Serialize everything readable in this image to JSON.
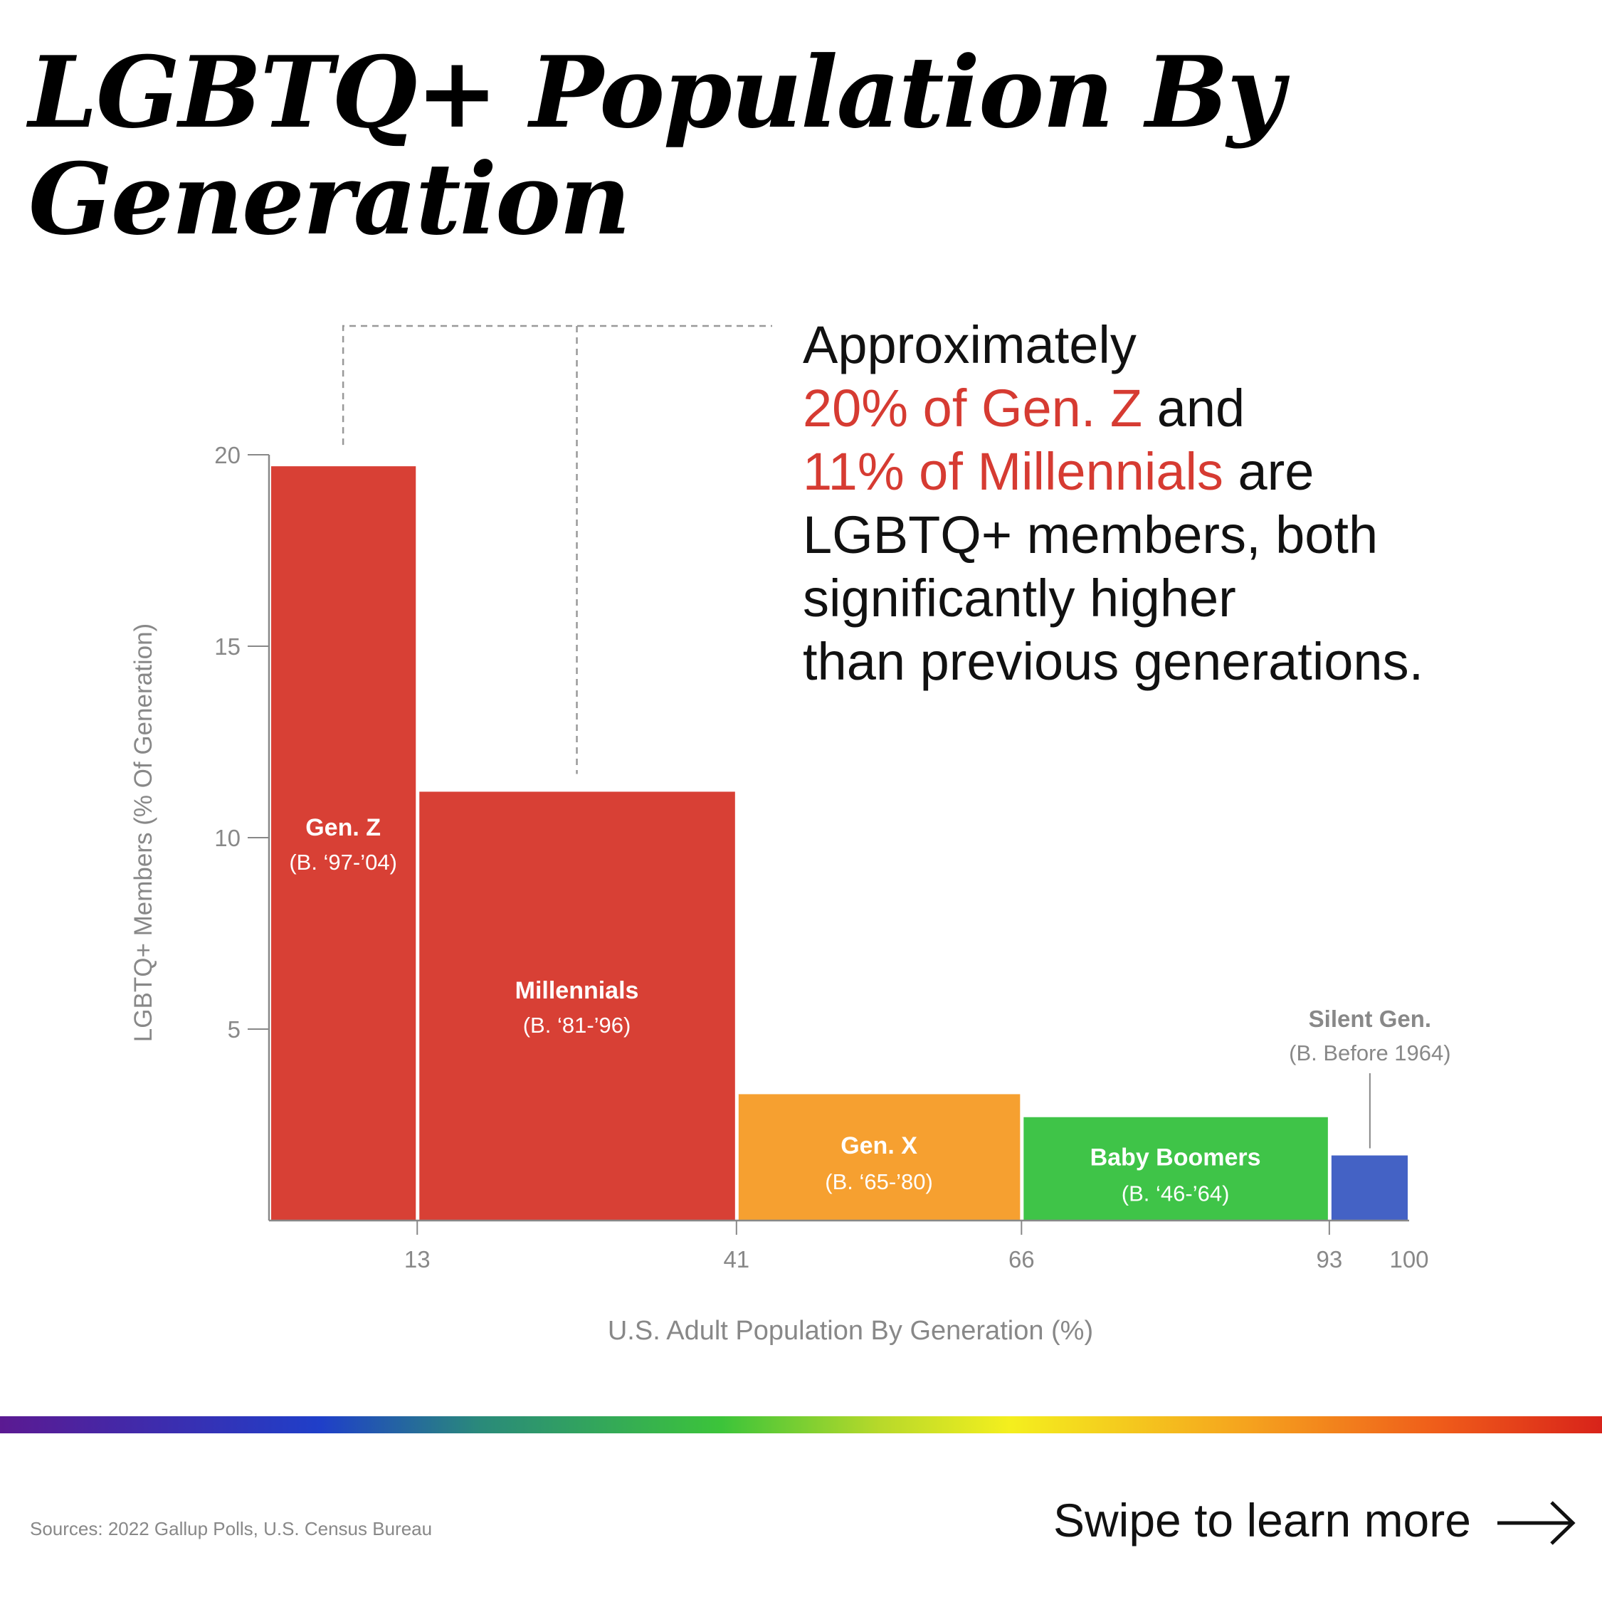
{
  "title_lines": [
    "LGBTQ+ Population By",
    "Generation"
  ],
  "callout": {
    "line1": "Approximately",
    "highlight1": "20% of Gen. Z",
    "after1": " and",
    "highlight2": "11% of Millennials",
    "after2": " are",
    "line4": "LGBTQ+ members, both",
    "line5": "significantly higher",
    "line6": "than previous generations."
  },
  "footer": {
    "sources": "Sources: 2022 Gallup Polls, U.S. Census Bureau",
    "swipe": "Swipe to learn more",
    "arrow_icon": "right-arrow-icon"
  },
  "colors": {
    "red": "#d84035",
    "orange": "#f6a030",
    "green": "#3fc448",
    "blue": "#4462c5",
    "highlight": "#d63b32",
    "axis": "#888888"
  },
  "chart_data": {
    "type": "bar",
    "variant": "variable-width (marimekko)",
    "xlabel": "U.S. Adult Population By Generation (%)",
    "ylabel": "LGBTQ+ Members (% Of Generation)",
    "xlim": [
      0,
      100
    ],
    "ylim": [
      0,
      20
    ],
    "x_ticks": [
      13,
      41,
      66,
      93,
      100
    ],
    "y_ticks": [
      5,
      10,
      15,
      20
    ],
    "series": [
      {
        "name": "Gen. Z",
        "sublabel": "(B. ‘97-’04)",
        "x_start": 0,
        "x_end": 13,
        "value": 19.7,
        "color": "#d84035",
        "label_color": "#ffffff"
      },
      {
        "name": "Millennials",
        "sublabel": "(B. ‘81-’96)",
        "x_start": 13,
        "x_end": 41,
        "value": 11.2,
        "color": "#d84035",
        "label_color": "#ffffff"
      },
      {
        "name": "Gen. X",
        "sublabel": "(B. ‘65-’80)",
        "x_start": 41,
        "x_end": 66,
        "value": 3.3,
        "color": "#f6a030",
        "label_color": "#ffffff"
      },
      {
        "name": "Baby Boomers",
        "sublabel": "(B. ‘46-’64)",
        "x_start": 66,
        "x_end": 93,
        "value": 2.7,
        "color": "#3fc448",
        "label_color": "#ffffff"
      },
      {
        "name": "Silent Gen.",
        "sublabel": "(B. Before 1964)",
        "x_start": 93,
        "x_end": 100,
        "value": 1.7,
        "color": "#4462c5",
        "label_color": "#888888"
      }
    ]
  }
}
